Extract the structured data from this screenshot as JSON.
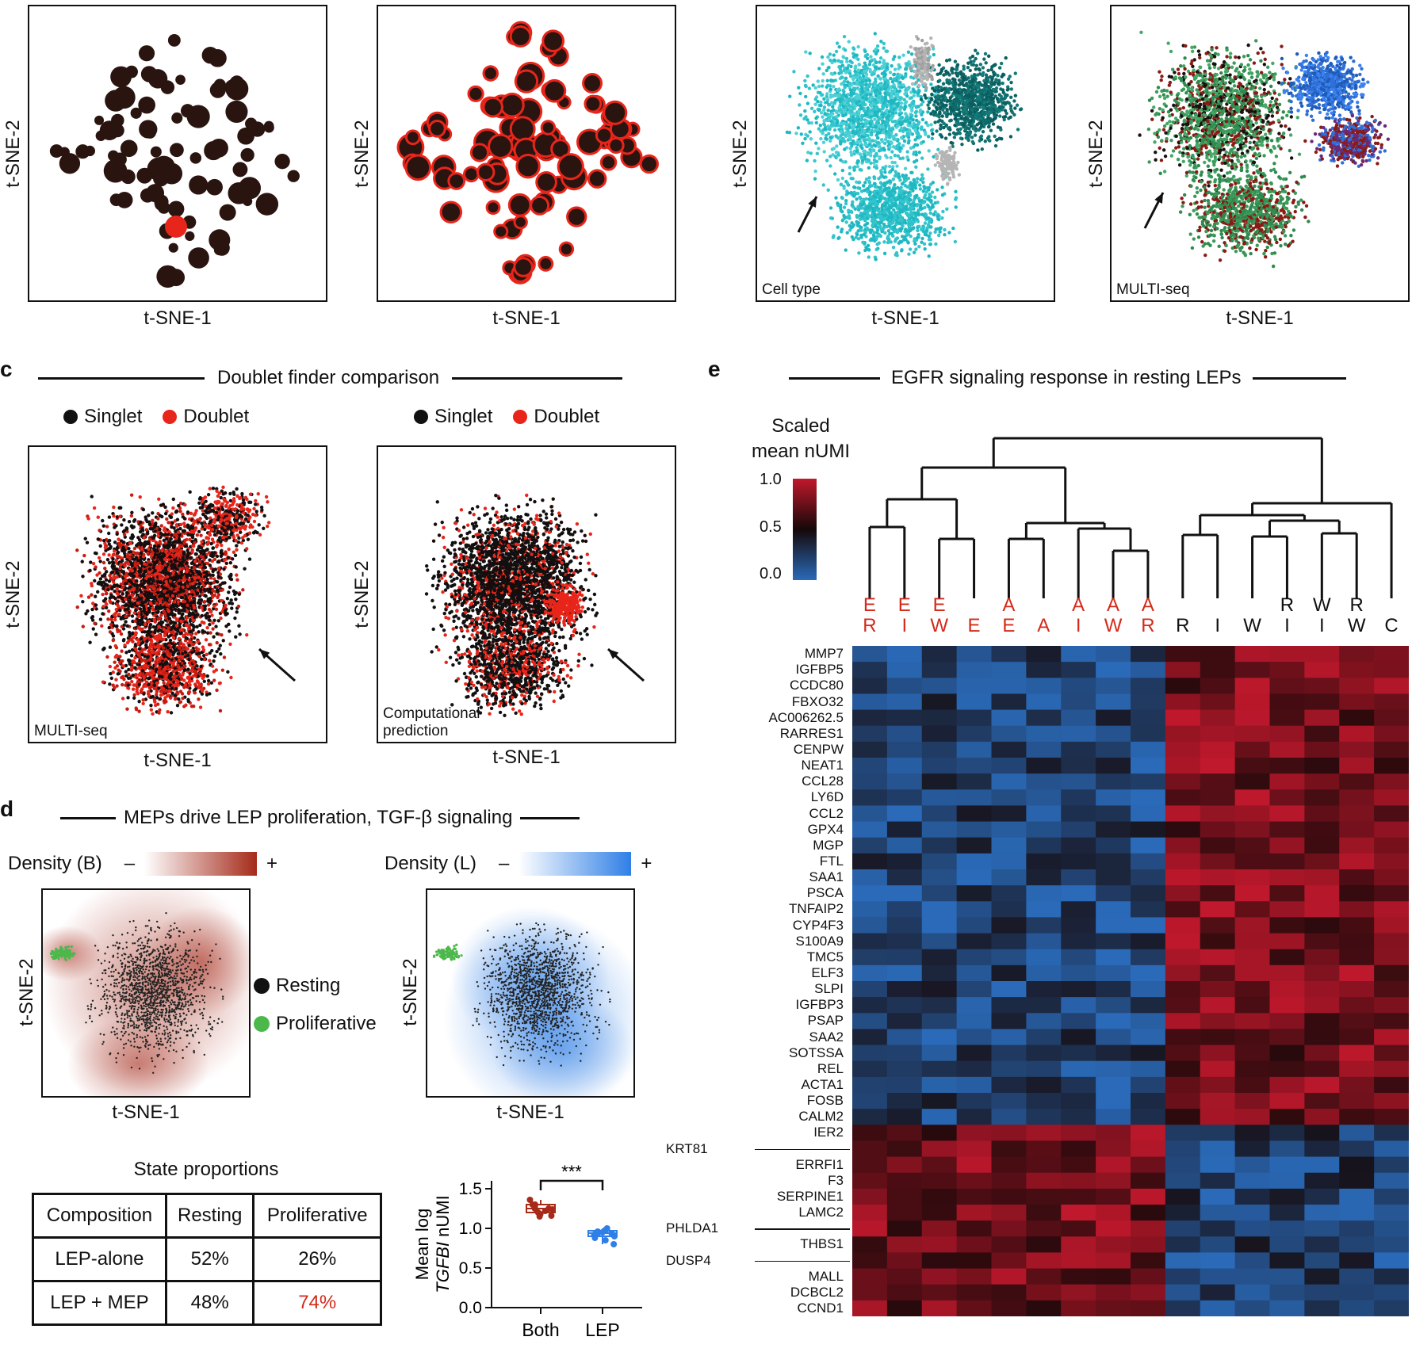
{
  "panel_a_b": {
    "xlabel": "t-SNE-1",
    "ylabel": "t-SNE-2",
    "tag_cell_type": "Cell type",
    "tag_multiseq": "MULTI-seq"
  },
  "panel_c": {
    "letter": "c",
    "title": "Doublet finder comparison",
    "legend_singlet": "Singlet",
    "legend_doublet": "Doublet",
    "tag_left": "MULTI-seq",
    "tag_right_line1": "Computational",
    "tag_right_line2": "prediction",
    "xlabel": "t-SNE-1",
    "ylabel": "t-SNE-2"
  },
  "panel_d": {
    "letter": "d",
    "title": "MEPs drive LEP proliferation, TGF-β signaling",
    "density_b": "Density (B)",
    "density_l": "Density (L)",
    "minus": "–",
    "plus": "+",
    "legend_resting": "Resting",
    "legend_proliferative": "Proliferative",
    "xlabel": "t-SNE-1",
    "ylabel": "t-SNE-2",
    "table_title": "State proportions",
    "table": {
      "headers": [
        "Composition",
        "Resting",
        "Proliferative"
      ],
      "rows": [
        [
          "LEP-alone",
          "52%",
          "26%"
        ],
        [
          "LEP + MEP",
          "48%",
          "74%"
        ]
      ]
    },
    "colors": {
      "resting": "#111111",
      "proliferative": "#4cb84c",
      "density_b": "#a52a1a",
      "density_l": "#2f7fe6",
      "highlight": "#d42a1a"
    }
  },
  "chart_data": {
    "type": "scatter",
    "categories": [
      "Both",
      "LEP"
    ],
    "ylabel_line1": "Mean log",
    "ylabel_gene": "TGFBI",
    "ylabel_unit": "nUMI",
    "yticks": [
      "0.0",
      "0.5",
      "1.0",
      "1.5"
    ],
    "ylim": [
      0,
      1.6
    ],
    "significance": "***",
    "series": [
      {
        "category": "Both",
        "color": "#a52a1a",
        "values": [
          1.36,
          1.3,
          1.27,
          1.25,
          1.22,
          1.2,
          1.18,
          1.16,
          1.25,
          1.3,
          1.15,
          1.24
        ]
      },
      {
        "category": "LEP",
        "color": "#2f7fe6",
        "values": [
          1.0,
          0.98,
          0.96,
          0.95,
          0.94,
          0.92,
          0.9,
          0.85,
          0.8,
          0.97,
          0.93,
          0.88
        ]
      }
    ]
  },
  "panel_e": {
    "letter": "e",
    "title": "EGFR signaling response in resting LEPs",
    "colorbar_title_1": "Scaled",
    "colorbar_title_2": "mean nUMI",
    "colorbar_ticks": [
      "1.0",
      "0.5",
      "0.0"
    ],
    "columns": [
      {
        "top": "E",
        "bottom": "R",
        "color": "#d42a1a"
      },
      {
        "top": "E",
        "bottom": "I",
        "color": "#d42a1a"
      },
      {
        "top": "E",
        "bottom": "W",
        "color": "#d42a1a"
      },
      {
        "top": "",
        "bottom": "E",
        "color": "#d42a1a"
      },
      {
        "top": "A",
        "bottom": "E",
        "color": "#d42a1a"
      },
      {
        "top": "",
        "bottom": "A",
        "color": "#d42a1a"
      },
      {
        "top": "A",
        "bottom": "I",
        "color": "#d42a1a"
      },
      {
        "top": "A",
        "bottom": "W",
        "color": "#d42a1a"
      },
      {
        "top": "A",
        "bottom": "R",
        "color": "#d42a1a"
      },
      {
        "top": "",
        "bottom": "R",
        "color": "#111111"
      },
      {
        "top": "",
        "bottom": "I",
        "color": "#111111"
      },
      {
        "top": "",
        "bottom": "W",
        "color": "#111111"
      },
      {
        "top": "R",
        "bottom": "I",
        "color": "#111111"
      },
      {
        "top": "W",
        "bottom": "I",
        "color": "#111111"
      },
      {
        "top": "R",
        "bottom": "W",
        "color": "#111111"
      },
      {
        "top": "",
        "bottom": "C",
        "color": "#111111"
      }
    ],
    "genes_right": [
      "MMP7",
      "IGFBP5",
      "CCDC80",
      "FBXO32",
      "AC006262.5",
      "RARRES1",
      "CENPW",
      "NEAT1",
      "CCL28",
      "LY6D",
      "CCL2",
      "GPX4",
      "MGP",
      "FTL",
      "SAA1",
      "PSCA",
      "TNFAIP2",
      "CYP4F3",
      "S100A9",
      "TMC5",
      "ELF3",
      "SLPI",
      "IGFBP3",
      "PSAP",
      "SAA2",
      "SOTSSA",
      "REL",
      "ACTA1",
      "FOSB",
      "CALM2",
      "IER2",
      "",
      "ERRFI1",
      "F3",
      "SERPINE1",
      "LAMC2",
      "",
      "THBS1",
      "",
      "MALL",
      "DCBCL2",
      "CCND1"
    ],
    "genes_left": [
      {
        "row": 31,
        "label": "KRT81"
      },
      {
        "row": 36,
        "label": "PHLDA1"
      },
      {
        "row": 38,
        "label": "DUSP4"
      }
    ],
    "colors": {
      "high": "#c0182c",
      "mid": "#150808",
      "low": "#2a6ab8"
    }
  }
}
